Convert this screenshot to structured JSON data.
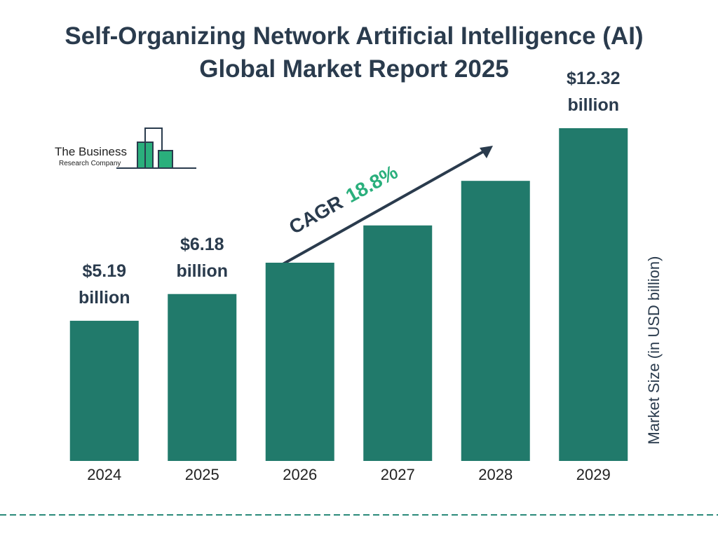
{
  "chart_data": {
    "type": "bar",
    "title": "Self-Organizing Network Artificial Intelligence (AI) Global Market Report 2025",
    "categories": [
      "2024",
      "2025",
      "2026",
      "2027",
      "2028",
      "2029"
    ],
    "values": [
      5.19,
      6.18,
      7.34,
      8.72,
      10.37,
      12.32
    ],
    "value_labels": [
      "$5.19 billion",
      "$6.18 billion",
      null,
      null,
      null,
      "$12.32 billion"
    ],
    "color": "#217a6b",
    "y_axis_label": "Market Size (in USD billion)",
    "annotation": {
      "label": "CAGR",
      "value": "18.8%"
    }
  },
  "logo": {
    "line1": "The Business",
    "line2": "Research Company"
  }
}
